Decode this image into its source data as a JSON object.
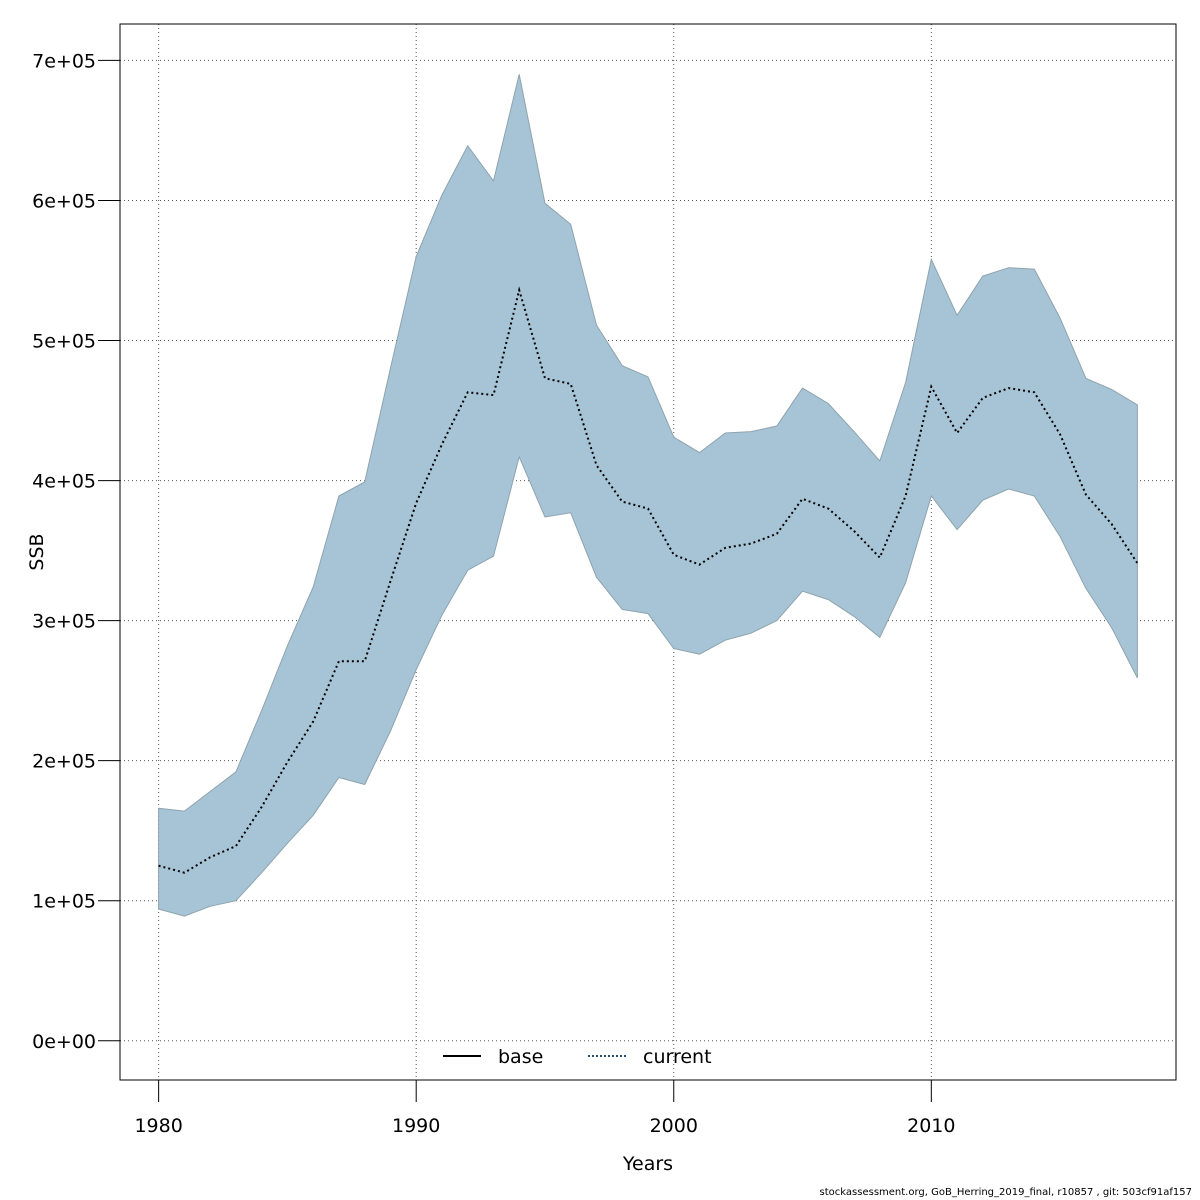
{
  "chart_data": {
    "type": "area",
    "title": "",
    "xlabel": "Years",
    "ylabel": "SSB",
    "xlim": [
      1978.5,
      2019.5
    ],
    "ylim": [
      -28000,
      726000
    ],
    "x_ticks": [
      1980,
      1990,
      2000,
      2010
    ],
    "x_tick_labels": [
      "1980",
      "1990",
      "2000",
      "2010"
    ],
    "y_ticks": [
      0,
      100000,
      200000,
      300000,
      400000,
      500000,
      600000,
      700000
    ],
    "y_tick_labels": [
      "0e+00",
      "1e+05",
      "2e+05",
      "3e+05",
      "4e+05",
      "5e+05",
      "6e+05",
      "7e+05"
    ],
    "grid": true,
    "legend_position": "bottom-center",
    "legend": [
      {
        "label": "base",
        "style": "solid",
        "color": "#000000"
      },
      {
        "label": "current",
        "style": "dotted",
        "color": "#1f4e79"
      }
    ],
    "years": [
      1980,
      1981,
      1982,
      1983,
      1984,
      1985,
      1986,
      1987,
      1988,
      1989,
      1990,
      1991,
      1992,
      1993,
      1994,
      1995,
      1996,
      1997,
      1998,
      1999,
      2000,
      2001,
      2002,
      2003,
      2004,
      2005,
      2006,
      2007,
      2008,
      2009,
      2010,
      2011,
      2012,
      2013,
      2014,
      2015,
      2016,
      2017,
      2018
    ],
    "series": [
      {
        "name": "current",
        "values": [
          125000,
          120000,
          131000,
          139000,
          167000,
          199000,
          228000,
          271000,
          271000,
          328000,
          384000,
          426000,
          463000,
          461000,
          536000,
          473000,
          469000,
          411000,
          385000,
          380000,
          347000,
          340000,
          352000,
          355000,
          362000,
          387000,
          380000,
          364000,
          345000,
          389000,
          467000,
          434000,
          459000,
          466000,
          463000,
          433000,
          390000,
          369000,
          341000
        ]
      }
    ],
    "confidence_band": {
      "upper": [
        166000,
        164000,
        178000,
        192000,
        236000,
        282000,
        324000,
        389000,
        399000,
        480000,
        560000,
        604000,
        639000,
        614000,
        690000,
        598000,
        583000,
        511000,
        482000,
        474000,
        431000,
        420000,
        434000,
        435000,
        439000,
        466000,
        455000,
        435000,
        414000,
        470000,
        558000,
        518000,
        546000,
        552000,
        551000,
        516000,
        473000,
        465000,
        454000
      ],
      "lower": [
        94000,
        89000,
        96000,
        100000,
        120000,
        141000,
        161000,
        188000,
        183000,
        221000,
        265000,
        304000,
        336000,
        346000,
        417000,
        374000,
        377000,
        331000,
        308000,
        305000,
        280000,
        276000,
        286000,
        291000,
        300000,
        321000,
        315000,
        303000,
        288000,
        327000,
        389000,
        365000,
        386000,
        394000,
        389000,
        360000,
        323000,
        295000,
        259000
      ],
      "color": "#a6c4d6"
    }
  },
  "footer": "stockassessment.org, GoB_Herring_2019_final, r10857 , git: 503cf91af157"
}
